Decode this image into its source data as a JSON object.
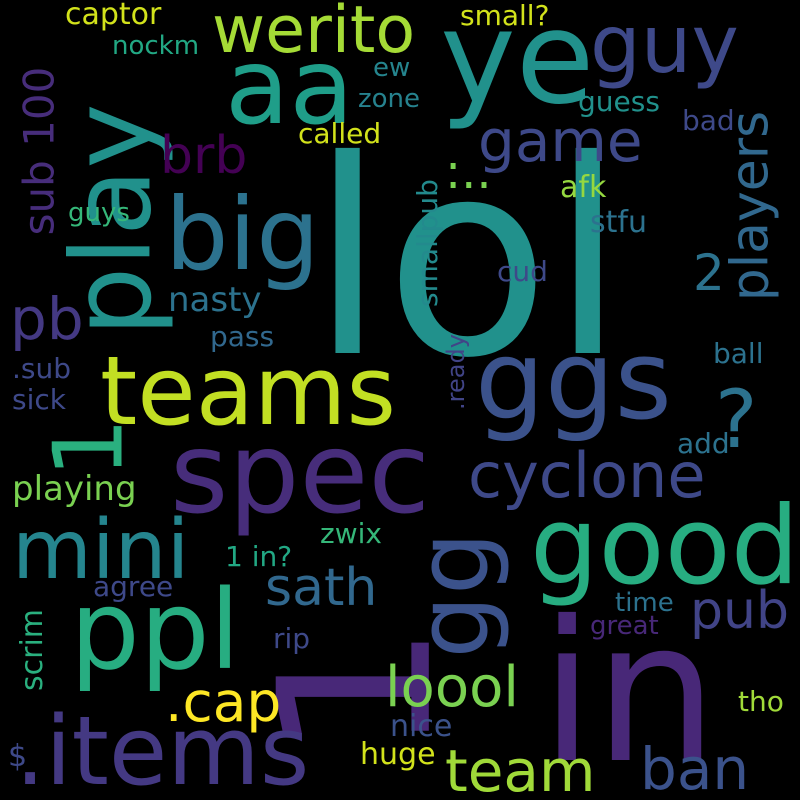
{
  "background": "#000000",
  "words": [
    {
      "text": "lol",
      "color": "#21918c"
    },
    {
      "text": "in",
      "color": "#482878"
    },
    {
      "text": "1",
      "color": "#482878"
    },
    {
      "text": "teams",
      "color": "#c2df23"
    },
    {
      "text": "spec",
      "color": "#472d7b"
    },
    {
      "text": "ggs",
      "color": "#3b528b"
    },
    {
      "text": "ye",
      "color": "#21918c"
    },
    {
      "text": "aa",
      "color": "#1f9e89"
    },
    {
      "text": "play",
      "color": "#21918c"
    },
    {
      "text": "1",
      "color": "#2ab07f"
    },
    {
      "text": "big",
      "color": "#2c728e"
    },
    {
      "text": "gg",
      "color": "#3b528b"
    },
    {
      "text": "good",
      "color": "#27ad81"
    },
    {
      "text": "ppl",
      "color": "#27ad81"
    },
    {
      "text": ".items",
      "color": "#443983"
    },
    {
      "text": "mini",
      "color": "#25858e"
    },
    {
      "text": "guy",
      "color": "#3e4989"
    },
    {
      "text": "werito",
      "color": "#a5db36"
    },
    {
      "text": "cyclone",
      "color": "#3e4989"
    },
    {
      "text": "players",
      "color": "#31688e"
    },
    {
      "text": "game",
      "color": "#3e4989"
    },
    {
      "text": "brb",
      "color": "#440154"
    },
    {
      "text": "pb",
      "color": "#443983"
    },
    {
      "text": "sub 100",
      "color": "#472d7b"
    },
    {
      "text": "team",
      "color": "#a0da39"
    },
    {
      "text": "ban",
      "color": "#3b528b"
    },
    {
      "text": "loool",
      "color": "#7ad151"
    },
    {
      "text": ".cap",
      "color": "#fde725"
    },
    {
      "text": "sath",
      "color": "#31688e"
    },
    {
      "text": "pub",
      "color": "#414487"
    },
    {
      "text": "?",
      "color": "#2c728e"
    },
    {
      "text": "2",
      "color": "#2c728e"
    },
    {
      "text": "nasty",
      "color": "#2c728e"
    },
    {
      "text": "playing",
      "color": "#7ad151"
    },
    {
      "text": ":..",
      "color": "#7ad151"
    },
    {
      "text": "captor",
      "color": "#d2e21b"
    },
    {
      "text": "small?",
      "color": "#d2e21b"
    },
    {
      "text": "nockm",
      "color": "#22a884"
    },
    {
      "text": "ew",
      "color": "#25858e"
    },
    {
      "text": "zone",
      "color": "#26828e"
    },
    {
      "text": "guess",
      "color": "#21918c"
    },
    {
      "text": "called",
      "color": "#d2e21b"
    },
    {
      "text": "bad",
      "color": "#3e4989"
    },
    {
      "text": "afk",
      "color": "#95d840"
    },
    {
      "text": "guys",
      "color": "#35b779"
    },
    {
      "text": "stfu",
      "color": "#2c728e"
    },
    {
      "text": "smallpub",
      "color": "#238a8d"
    },
    {
      "text": "cud",
      "color": "#3e4989"
    },
    {
      "text": "pass",
      "color": "#31688e"
    },
    {
      "text": "ball",
      "color": "#2c728e"
    },
    {
      "text": ".sub",
      "color": "#3e4989"
    },
    {
      "text": "sick",
      "color": "#3e4989"
    },
    {
      "text": ".ready",
      "color": "#414487"
    },
    {
      "text": "add",
      "color": "#2c728e"
    },
    {
      "text": "zwix",
      "color": "#35b779"
    },
    {
      "text": "1 in?",
      "color": "#22a884"
    },
    {
      "text": "agree",
      "color": "#3e4989"
    },
    {
      "text": "scrim",
      "color": "#2ab07f"
    },
    {
      "text": "time",
      "color": "#2c728e"
    },
    {
      "text": "great",
      "color": "#482878"
    },
    {
      "text": "rip",
      "color": "#3e4989"
    },
    {
      "text": "nice",
      "color": "#3b528b"
    },
    {
      "text": "tho",
      "color": "#a0da39"
    },
    {
      "text": "huge",
      "color": "#d2e21b"
    },
    {
      "text": "$",
      "color": "#3e4989"
    }
  ]
}
